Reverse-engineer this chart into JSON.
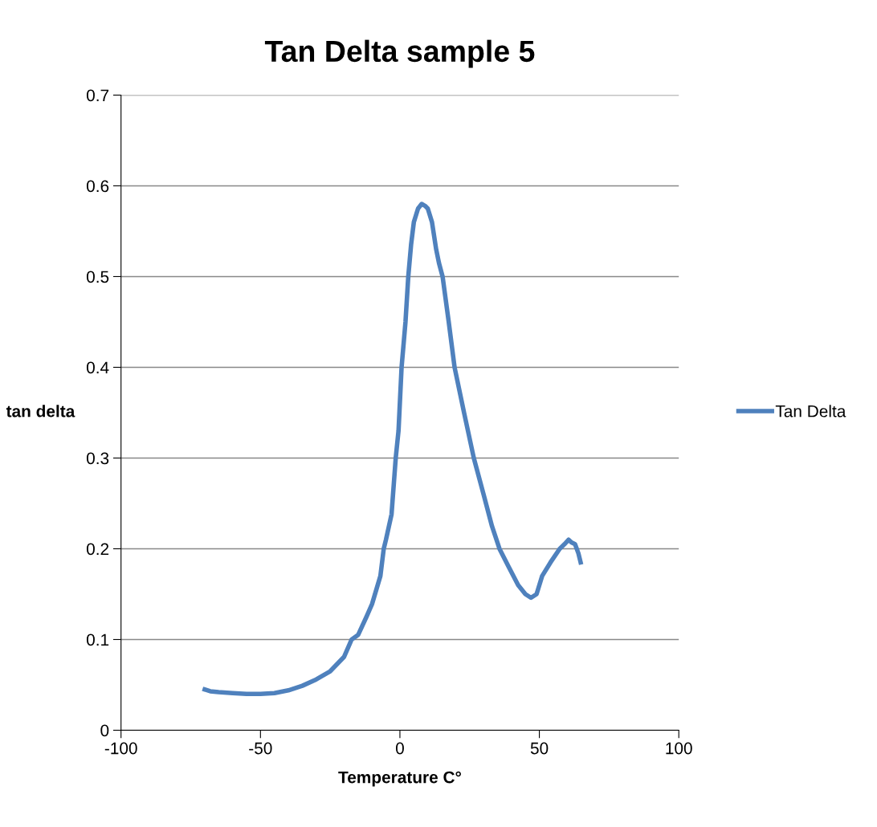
{
  "chart_data": {
    "type": "line",
    "title": "Tan Delta sample 5",
    "xlabel": "Temperature C°",
    "ylabel": "tan delta",
    "series": [
      {
        "name": "Tan Delta",
        "color": "#4f81bd",
        "x": [
          -70,
          -68,
          -65,
          -60,
          -55,
          -50,
          -45,
          -40,
          -35,
          -30,
          -25,
          -20,
          -17.3,
          -15,
          -12,
          -10,
          -7,
          -5.8,
          -5,
          -3,
          -1.5,
          -0.5,
          0.6,
          2,
          3,
          4,
          5,
          6.5,
          7.8,
          9,
          10,
          11.5,
          13,
          14,
          15.3,
          17.5,
          19.6,
          23,
          26.5,
          30,
          33,
          35.7,
          39,
          42.4,
          45,
          47,
          49,
          51,
          54,
          57.3,
          59,
          60.5,
          61.5,
          62.8,
          64,
          64.8
        ],
        "values": [
          0.045,
          0.043,
          0.042,
          0.041,
          0.04,
          0.04,
          0.041,
          0.044,
          0.049,
          0.056,
          0.065,
          0.081,
          0.1,
          0.105,
          0.125,
          0.139,
          0.17,
          0.2,
          0.21,
          0.238,
          0.3,
          0.33,
          0.4,
          0.45,
          0.5,
          0.535,
          0.56,
          0.575,
          0.58,
          0.578,
          0.575,
          0.56,
          0.53,
          0.515,
          0.5,
          0.45,
          0.4,
          0.35,
          0.3,
          0.26,
          0.225,
          0.2,
          0.18,
          0.16,
          0.15,
          0.146,
          0.15,
          0.17,
          0.185,
          0.2,
          0.205,
          0.21,
          0.207,
          0.205,
          0.195,
          0.185
        ]
      }
    ],
    "xlim": [
      -100,
      100
    ],
    "xticks": [
      -100,
      -50,
      0,
      50,
      100
    ],
    "ylim": [
      0,
      0.7
    ],
    "yticks": [
      0,
      0.1,
      0.2,
      0.3,
      0.4,
      0.5,
      0.6,
      0.7
    ],
    "grid": "y",
    "legend": "right",
    "marker": "none",
    "line_style": "solid"
  }
}
